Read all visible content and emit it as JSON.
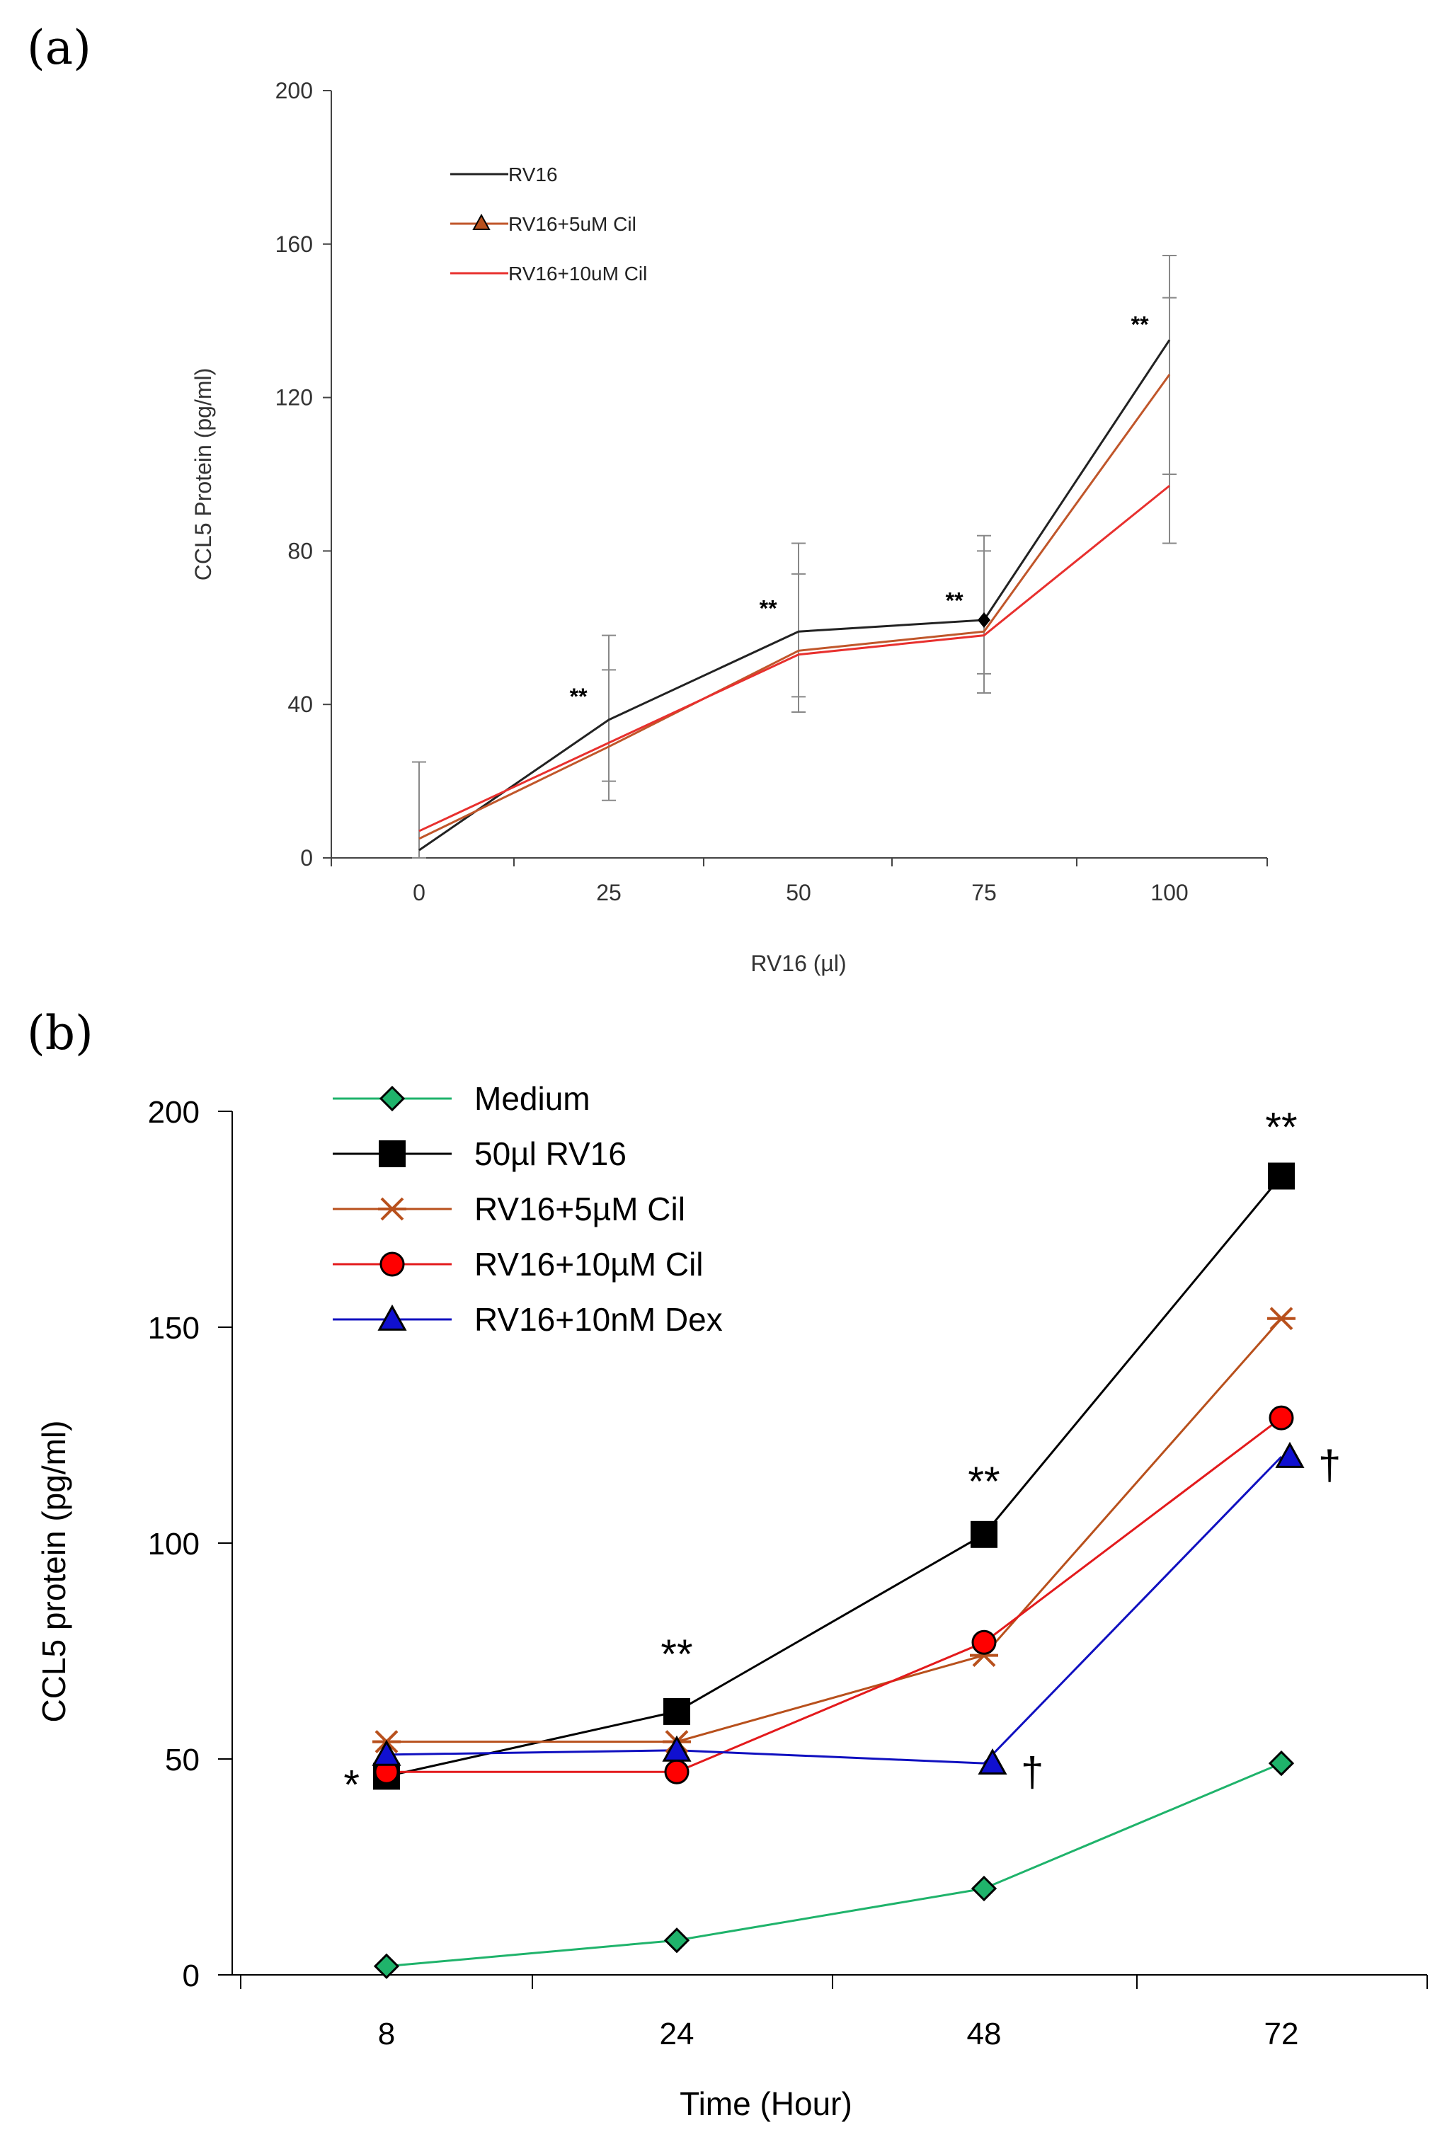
{
  "panel_a": {
    "label": "(a)"
  },
  "panel_b": {
    "label": "(b)"
  },
  "chart_data": [
    {
      "id": "a",
      "type": "line",
      "title": "",
      "xlabel": "RV16 (µl)",
      "ylabel": "CCL5 Protein (pg/ml)",
      "categories": [
        "0",
        "25",
        "50",
        "75",
        "100"
      ],
      "x": [
        0,
        25,
        50,
        75,
        100
      ],
      "ylim": [
        0,
        200
      ],
      "yticks": [
        0,
        40,
        80,
        120,
        160,
        200
      ],
      "legend_position": "top-left",
      "series": [
        {
          "name": "RV16",
          "color": "#222222",
          "marker": "none",
          "values": [
            2,
            36,
            59,
            62,
            135
          ]
        },
        {
          "name": "RV16+5uM Cil",
          "color": "#c0562a",
          "marker": "triangle",
          "values": [
            5,
            29,
            54,
            59,
            126
          ]
        },
        {
          "name": "RV16+10uM Cil",
          "color": "#e8302e",
          "marker": "none",
          "values": [
            7,
            30,
            53,
            58,
            97
          ]
        }
      ],
      "error_bars": [
        {
          "x": 0,
          "low": 0,
          "high": 25
        },
        {
          "x": 25,
          "low": 15,
          "high": 58
        },
        {
          "x": 25,
          "low": 20,
          "high": 49
        },
        {
          "x": 50,
          "low": 38,
          "high": 82
        },
        {
          "x": 50,
          "low": 42,
          "high": 74
        },
        {
          "x": 75,
          "low": 43,
          "high": 84
        },
        {
          "x": 75,
          "low": 48,
          "high": 80
        },
        {
          "x": 100,
          "low": 82,
          "high": 157
        },
        {
          "x": 100,
          "low": 100,
          "high": 146
        }
      ],
      "diamond_marker": {
        "x": 75,
        "y": 62,
        "color": "#000000"
      },
      "annotations": [
        {
          "text": "**",
          "x": 21,
          "y": 40
        },
        {
          "text": "**",
          "x": 46,
          "y": 63
        },
        {
          "text": "**",
          "x": 71,
          "y": 65
        },
        {
          "text": "**",
          "x": 96,
          "y": 137
        }
      ]
    },
    {
      "id": "b",
      "type": "line",
      "title": "",
      "xlabel": "Time (Hour)",
      "ylabel": "CCL5 protein (pg/ml)",
      "categories": [
        "8",
        "24",
        "48",
        "72"
      ],
      "ylim": [
        0,
        200
      ],
      "yticks": [
        0,
        50,
        100,
        150,
        200
      ],
      "legend_position": "top-left",
      "series": [
        {
          "name": "Medium",
          "color": "#1fb36b",
          "marker": "diamond",
          "fill": "#1fb36b",
          "values": [
            2,
            8,
            20,
            49
          ]
        },
        {
          "name": "50µl RV16",
          "color": "#000000",
          "marker": "square",
          "fill": "#000000",
          "values": [
            46,
            61,
            102,
            185
          ]
        },
        {
          "name": "RV16+5µM Cil",
          "color": "#b8501c",
          "marker": "star",
          "fill": "#b8501c",
          "values": [
            54,
            54,
            74,
            152
          ]
        },
        {
          "name": "RV16+10µM Cil",
          "color": "#e31a1c",
          "marker": "circle",
          "fill": "#ff0000",
          "values": [
            47,
            47,
            77,
            129
          ]
        },
        {
          "name": "RV16+10nM Dex",
          "color": "#1010c0",
          "marker": "triangle",
          "fill": "#1010d0",
          "values": [
            51,
            52,
            49,
            120
          ]
        }
      ],
      "annotations": [
        {
          "text": "*",
          "category": 0,
          "y": 44,
          "side": "left"
        },
        {
          "text": "**",
          "category": 1,
          "y": 71,
          "side": "above"
        },
        {
          "text": "**",
          "category": 2,
          "y": 111,
          "side": "above"
        },
        {
          "text": "**",
          "category": 3,
          "y": 193,
          "side": "above"
        },
        {
          "text": "†",
          "category": 2,
          "y": 47,
          "side": "right"
        },
        {
          "text": "†",
          "category": 3,
          "y": 118,
          "side": "right"
        }
      ]
    }
  ]
}
